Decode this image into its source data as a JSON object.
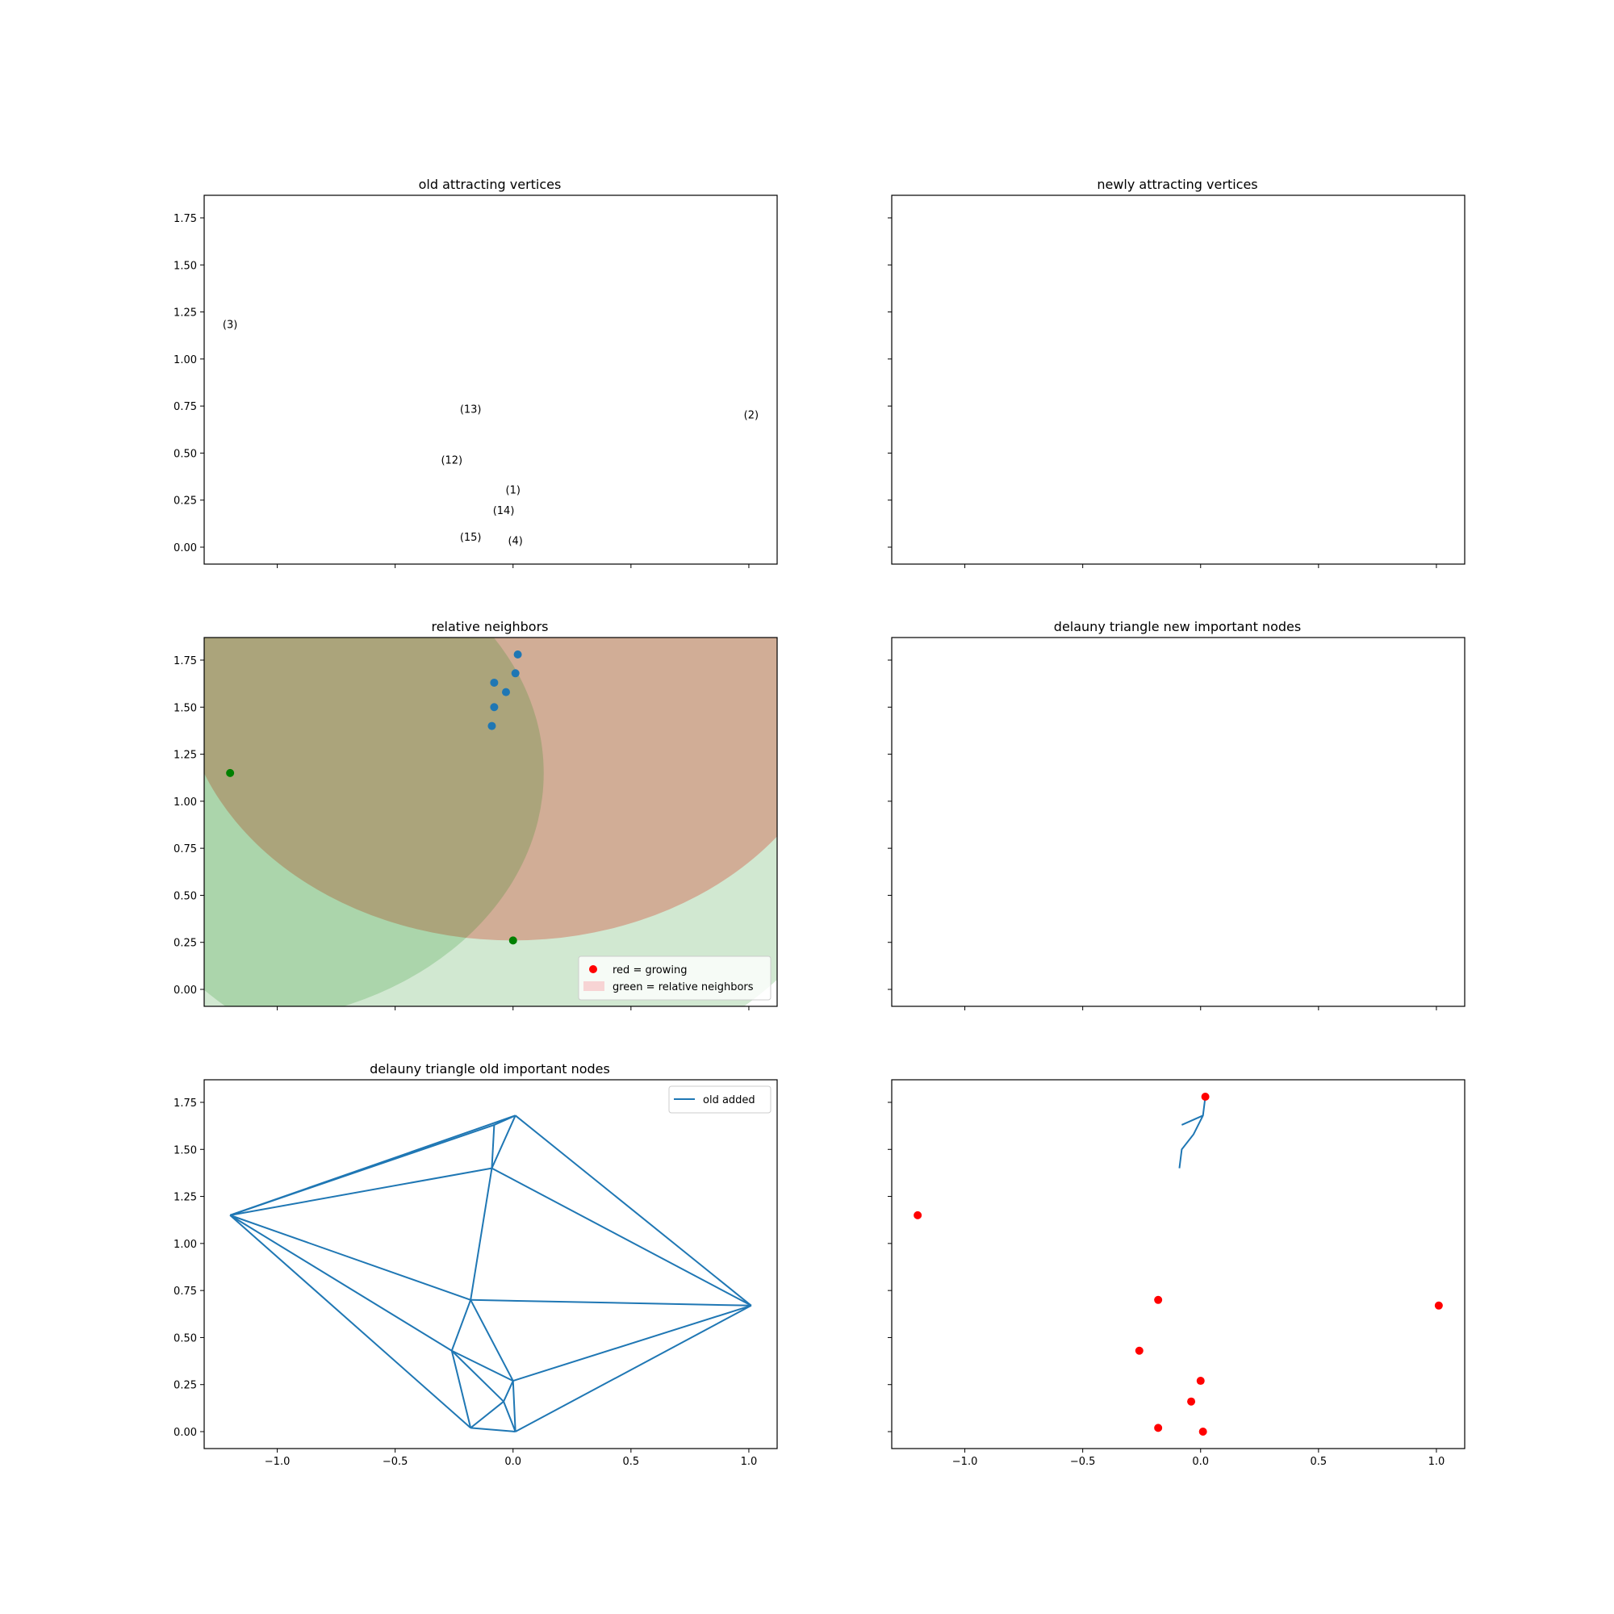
{
  "figure": {
    "subplots": [
      {
        "title": "old attracting vertices"
      },
      {
        "title": "newly attracting vertices"
      },
      {
        "title": "relative neighbors"
      },
      {
        "title": "delauny triangle new important nodes"
      },
      {
        "title": "delauny triangle old important nodes"
      },
      {
        "title": ""
      }
    ]
  },
  "chart_data": [
    {
      "type": "scatter",
      "title": "old attracting vertices",
      "xlim": [
        -1.31,
        1.12
      ],
      "ylim": [
        -0.09,
        1.87
      ],
      "x_ticks": [
        "−1.0",
        "−0.5",
        "0.0",
        "0.5",
        "1.0"
      ],
      "x_tick_labels_shown": false,
      "y_ticks": [
        "0.00",
        "0.25",
        "0.50",
        "0.75",
        "1.00",
        "1.25",
        "1.50",
        "1.75"
      ],
      "annotations": [
        {
          "text": "(3)",
          "x": -1.2,
          "y": 1.18
        },
        {
          "text": "(13)",
          "x": -0.18,
          "y": 0.73
        },
        {
          "text": "(2)",
          "x": 1.01,
          "y": 0.7
        },
        {
          "text": "(12)",
          "x": -0.26,
          "y": 0.46
        },
        {
          "text": "(1)",
          "x": 0.0,
          "y": 0.3
        },
        {
          "text": "(14)",
          "x": -0.04,
          "y": 0.19
        },
        {
          "text": "(15)",
          "x": -0.18,
          "y": 0.05
        },
        {
          "text": "(4)",
          "x": 0.01,
          "y": 0.03
        }
      ]
    },
    {
      "type": "scatter",
      "title": "newly attracting vertices",
      "xlim": [
        -1.31,
        1.12
      ],
      "ylim": [
        -0.09,
        1.87
      ],
      "x_ticks": [
        "−1.0",
        "−0.5",
        "0.0",
        "0.5",
        "1.0"
      ],
      "x_tick_labels_shown": false,
      "y_ticks": [
        "0.00",
        "0.25",
        "0.50",
        "0.75",
        "1.00",
        "1.25",
        "1.50",
        "1.75"
      ],
      "y_tick_labels_shown": false
    },
    {
      "type": "scatter",
      "title": "relative neighbors",
      "xlim": [
        -1.31,
        1.12
      ],
      "ylim": [
        -0.09,
        1.87
      ],
      "x_ticks": [
        "−1.0",
        "−0.5",
        "0.0",
        "0.5",
        "1.0"
      ],
      "x_tick_labels_shown": false,
      "y_ticks": [
        "0.00",
        "0.25",
        "0.50",
        "0.75",
        "1.00",
        "1.25",
        "1.50",
        "1.75"
      ],
      "legend": {
        "placement": "lower right",
        "entries": [
          {
            "label": "red = growing",
            "marker": "dot",
            "color": "#ff0000"
          },
          {
            "label": "green = relative neighbors",
            "marker": "patch",
            "color": "#f7d4d4"
          }
        ]
      },
      "regions": [
        {
          "shape": "circle",
          "cx": 0.0,
          "cy": 1.67,
          "r": 1.41,
          "fill": "#ff0000",
          "alpha": 0.28
        },
        {
          "shape": "circle",
          "cx": -0.12,
          "cy": 1.14,
          "r": 1.65,
          "fill": "#008000",
          "alpha": 0.18
        },
        {
          "shape": "circle",
          "cx": -1.2,
          "cy": 1.15,
          "r": 1.33,
          "fill": "#008000",
          "alpha": 0.18
        }
      ],
      "series": [
        {
          "color": "#1f77b4",
          "points": [
            {
              "x": 0.02,
              "y": 1.78
            },
            {
              "x": 0.01,
              "y": 1.68
            },
            {
              "x": -0.08,
              "y": 1.63
            },
            {
              "x": -0.03,
              "y": 1.58
            },
            {
              "x": -0.08,
              "y": 1.5
            },
            {
              "x": -0.09,
              "y": 1.4
            }
          ]
        },
        {
          "color": "#008000",
          "points": [
            {
              "x": -1.2,
              "y": 1.15
            },
            {
              "x": 0.0,
              "y": 0.26
            }
          ]
        }
      ]
    },
    {
      "type": "scatter",
      "title": "delauny triangle new important nodes",
      "xlim": [
        -1.31,
        1.12
      ],
      "ylim": [
        -0.09,
        1.87
      ],
      "x_ticks": [
        "−1.0",
        "−0.5",
        "0.0",
        "0.5",
        "1.0"
      ],
      "x_tick_labels_shown": false,
      "y_ticks": [
        "0.00",
        "0.25",
        "0.50",
        "0.75",
        "1.00",
        "1.25",
        "1.50",
        "1.75"
      ],
      "y_tick_labels_shown": false
    },
    {
      "type": "line",
      "title": "delauny triangle old important nodes",
      "xlim": [
        -1.31,
        1.12
      ],
      "ylim": [
        -0.09,
        1.87
      ],
      "x_ticks": [
        "−1.0",
        "−0.5",
        "0.0",
        "0.5",
        "1.0"
      ],
      "y_ticks": [
        "0.00",
        "0.25",
        "0.50",
        "0.75",
        "1.00",
        "1.25",
        "1.50",
        "1.75"
      ],
      "legend": {
        "placement": "upper right",
        "entries": [
          {
            "label": "old added",
            "marker": "line",
            "color": "#1f77b4"
          }
        ]
      },
      "nodes": [
        {
          "x": -1.2,
          "y": 1.15
        },
        {
          "x": 0.01,
          "y": 1.68
        },
        {
          "x": -0.08,
          "y": 1.63
        },
        {
          "x": -0.09,
          "y": 1.4
        },
        {
          "x": 1.01,
          "y": 0.67
        },
        {
          "x": -0.18,
          "y": 0.7
        },
        {
          "x": -0.26,
          "y": 0.43
        },
        {
          "x": 0.0,
          "y": 0.27
        },
        {
          "x": -0.04,
          "y": 0.16
        },
        {
          "x": -0.18,
          "y": 0.02
        },
        {
          "x": 0.01,
          "y": 0.0
        }
      ],
      "edges": [
        [
          0,
          1
        ],
        [
          0,
          2
        ],
        [
          0,
          3
        ],
        [
          0,
          5
        ],
        [
          0,
          6
        ],
        [
          0,
          9
        ],
        [
          1,
          2
        ],
        [
          1,
          3
        ],
        [
          1,
          4
        ],
        [
          2,
          3
        ],
        [
          3,
          4
        ],
        [
          3,
          5
        ],
        [
          5,
          4
        ],
        [
          5,
          6
        ],
        [
          5,
          7
        ],
        [
          6,
          7
        ],
        [
          6,
          8
        ],
        [
          6,
          9
        ],
        [
          7,
          8
        ],
        [
          7,
          10
        ],
        [
          7,
          4
        ],
        [
          8,
          10
        ],
        [
          9,
          8
        ],
        [
          9,
          10
        ],
        [
          10,
          4
        ]
      ]
    },
    {
      "type": "scatter",
      "title": "",
      "xlim": [
        -1.31,
        1.12
      ],
      "ylim": [
        -0.09,
        1.87
      ],
      "x_ticks": [
        "−1.0",
        "−0.5",
        "0.0",
        "0.5",
        "1.0"
      ],
      "y_ticks": [
        "0.00",
        "0.25",
        "0.50",
        "0.75",
        "1.00",
        "1.25",
        "1.50",
        "1.75"
      ],
      "y_tick_labels_shown": false,
      "series": [
        {
          "color": "#ff0000",
          "points": [
            {
              "x": 0.02,
              "y": 1.78
            },
            {
              "x": -1.2,
              "y": 1.15
            },
            {
              "x": -0.18,
              "y": 0.7
            },
            {
              "x": 1.01,
              "y": 0.67
            },
            {
              "x": -0.26,
              "y": 0.43
            },
            {
              "x": 0.0,
              "y": 0.27
            },
            {
              "x": -0.04,
              "y": 0.16
            },
            {
              "x": -0.18,
              "y": 0.02
            },
            {
              "x": 0.01,
              "y": 0.0
            }
          ]
        }
      ],
      "lines": [
        {
          "color": "#1f77b4",
          "points": [
            {
              "x": 0.02,
              "y": 1.78
            },
            {
              "x": 0.01,
              "y": 1.68
            },
            {
              "x": -0.03,
              "y": 1.58
            },
            {
              "x": -0.08,
              "y": 1.5
            },
            {
              "x": -0.09,
              "y": 1.4
            }
          ]
        },
        {
          "color": "#1f77b4",
          "points": [
            {
              "x": 0.01,
              "y": 1.68
            },
            {
              "x": -0.08,
              "y": 1.63
            }
          ]
        }
      ]
    }
  ]
}
